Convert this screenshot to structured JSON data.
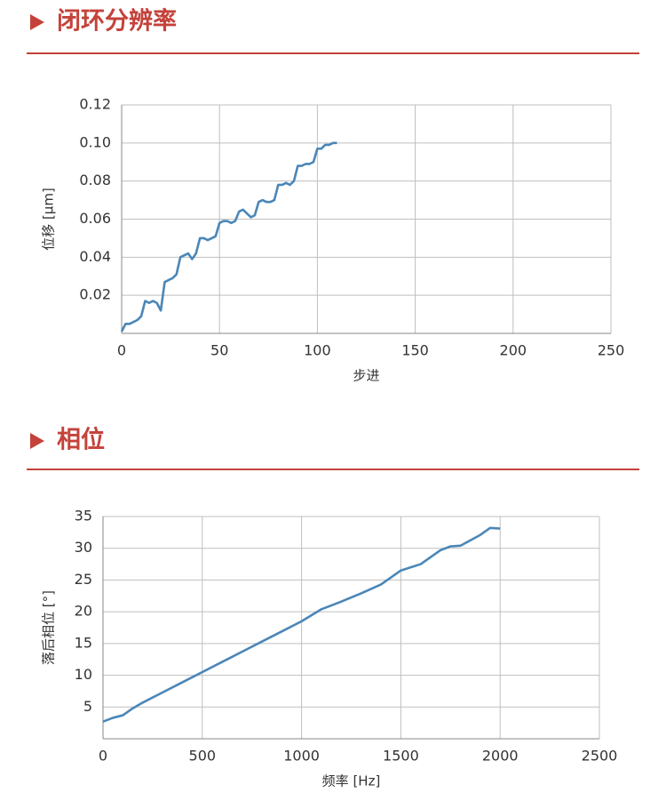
{
  "chart_data": [
    {
      "type": "line",
      "title": "闭环分辨率",
      "x_label": "步进",
      "y_label": "位移 [µm]",
      "x": [
        0,
        2,
        4,
        6,
        8,
        10,
        12,
        14,
        16,
        18,
        20,
        22,
        24,
        26,
        28,
        30,
        32,
        34,
        36,
        38,
        40,
        42,
        44,
        46,
        48,
        50,
        52,
        54,
        56,
        58,
        60,
        62,
        64,
        66,
        68,
        70,
        72,
        74,
        76,
        78,
        80,
        82,
        84,
        86,
        88,
        90,
        92,
        94,
        96,
        98,
        100,
        102,
        104,
        106,
        108,
        110
      ],
      "values": [
        0.001,
        0.005,
        0.005,
        0.006,
        0.007,
        0.009,
        0.017,
        0.016,
        0.017,
        0.016,
        0.012,
        0.027,
        0.028,
        0.029,
        0.031,
        0.04,
        0.041,
        0.042,
        0.039,
        0.042,
        0.05,
        0.05,
        0.049,
        0.05,
        0.051,
        0.058,
        0.059,
        0.059,
        0.058,
        0.059,
        0.064,
        0.065,
        0.063,
        0.061,
        0.062,
        0.069,
        0.07,
        0.069,
        0.069,
        0.07,
        0.078,
        0.078,
        0.079,
        0.078,
        0.08,
        0.088,
        0.088,
        0.089,
        0.089,
        0.09,
        0.097,
        0.097,
        0.099,
        0.099,
        0.1,
        0.1
      ],
      "color": "#4a86b8",
      "xlim": [
        0,
        250
      ],
      "xticks": [
        0,
        50,
        100,
        150,
        200,
        250
      ],
      "ylim": [
        0,
        0.12
      ],
      "yticks": [
        0.02,
        0.04,
        0.06,
        0.08,
        {
          "value": 0.1,
          "label": "0.10"
        },
        0.12
      ],
      "grid": true
    },
    {
      "type": "line",
      "title": "相位",
      "x_label": "频率 [Hz]",
      "y_label": "落后相位 [°]",
      "x": [
        0,
        50,
        100,
        150,
        200,
        300,
        400,
        500,
        600,
        700,
        800,
        900,
        1000,
        1100,
        1200,
        1300,
        1400,
        1500,
        1600,
        1700,
        1750,
        1800,
        1900,
        1950,
        2000
      ],
      "values": [
        2.7,
        3.3,
        3.7,
        4.8,
        5.7,
        7.3,
        8.9,
        10.5,
        12.1,
        13.7,
        15.3,
        16.9,
        18.5,
        20.4,
        21.6,
        22.9,
        24.3,
        26.5,
        27.5,
        29.7,
        30.3,
        30.4,
        32.1,
        33.2,
        33.1
      ],
      "color": "#4a86b8",
      "xlim": [
        0,
        2500
      ],
      "xticks": [
        0,
        500,
        1000,
        1500,
        2000,
        2500
      ],
      "ylim": [
        0,
        35
      ],
      "yticks": [
        5,
        10,
        15,
        20,
        25,
        30,
        35
      ],
      "grid": true
    }
  ]
}
